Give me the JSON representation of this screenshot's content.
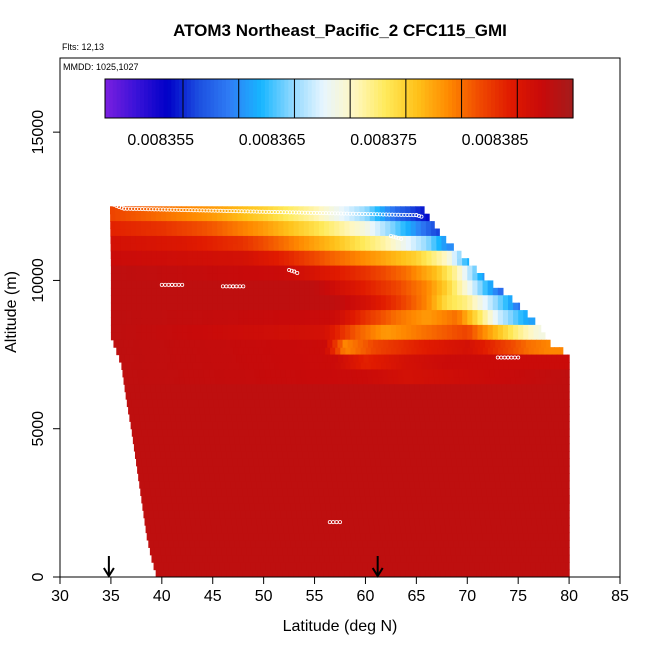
{
  "chart_data": {
    "type": "heatmap",
    "title": "ATOM3 Northeast_Pacific_2 CFC115_GMI",
    "annotations": {
      "flights": "Flts: 12,13",
      "dates": "MMDD: 1025,1027"
    },
    "xlabel": "Latitude (deg N)",
    "ylabel": "Altitude (m)",
    "xlim": [
      30,
      85
    ],
    "ylim": [
      0,
      17500
    ],
    "x_ticks": [
      "30",
      "35",
      "40",
      "45",
      "50",
      "55",
      "60",
      "65",
      "70",
      "75",
      "80",
      "85"
    ],
    "y_ticks": [
      "0",
      "5000",
      "10000",
      "15000"
    ],
    "colorbar": {
      "range": [
        0.00835,
        0.008392
      ],
      "tick_labels": [
        "0.008355",
        "0.008365",
        "0.008375",
        "0.008385"
      ],
      "tick_values": [
        0.008355,
        0.008365,
        0.008375,
        0.008385
      ],
      "colors": [
        "#7b1fe0",
        "#3a12d8",
        "#0000c8",
        "#1c4fe0",
        "#2f7df5",
        "#17b6ff",
        "#8fd8ff",
        "#e8f6ff",
        "#fff7c0",
        "#ffea5a",
        "#ffc21a",
        "#ff8a00",
        "#f04a00",
        "#e01a00",
        "#c80a0a",
        "#a41c1c"
      ]
    },
    "profile_bottom_edge": [
      [
        34.9,
        12600
      ],
      [
        35.0,
        10500
      ],
      [
        35.0,
        8100
      ],
      [
        36.0,
        7200
      ],
      [
        36.5,
        6000
      ],
      [
        37.0,
        5000
      ],
      [
        37.5,
        3800
      ],
      [
        38.0,
        2600
      ],
      [
        38.5,
        1400
      ],
      [
        39.0,
        600
      ],
      [
        39.5,
        0
      ]
    ],
    "profile_top_edge": [
      [
        35.5,
        12600
      ],
      [
        65.5,
        12500
      ],
      [
        66.5,
        12000
      ],
      [
        67.5,
        11500
      ],
      [
        69.0,
        11000
      ],
      [
        70.5,
        10500
      ],
      [
        72.0,
        10000
      ],
      [
        74.0,
        9500
      ],
      [
        75.5,
        9000
      ],
      [
        77.0,
        8500
      ],
      [
        78.0,
        7900
      ],
      [
        80.0,
        7500
      ],
      [
        80.0,
        0
      ]
    ],
    "layers": [
      {
        "alt": [
          12000,
          12500
        ],
        "values": [
          [
            35,
            0.008384
          ],
          [
            40,
            0.008382
          ],
          [
            45,
            0.00838
          ],
          [
            50,
            0.008377
          ],
          [
            55,
            0.008373
          ],
          [
            60,
            0.008367
          ],
          [
            63,
            0.00836
          ],
          [
            66,
            0.008356
          ]
        ]
      },
      {
        "alt": [
          11500,
          12000
        ],
        "values": [
          [
            35,
            0.008386
          ],
          [
            40,
            0.008385
          ],
          [
            45,
            0.008383
          ],
          [
            50,
            0.00838
          ],
          [
            55,
            0.008376
          ],
          [
            60,
            0.008371
          ],
          [
            64,
            0.008364
          ],
          [
            67,
            0.008358
          ]
        ]
      },
      {
        "alt": [
          11000,
          11500
        ],
        "values": [
          [
            35,
            0.008388
          ],
          [
            42,
            0.008387
          ],
          [
            48,
            0.008385
          ],
          [
            52,
            0.008382
          ],
          [
            57,
            0.008378
          ],
          [
            62,
            0.008373
          ],
          [
            66,
            0.008367
          ],
          [
            68,
            0.008362
          ]
        ]
      },
      {
        "alt": [
          10500,
          11000
        ],
        "values": [
          [
            35,
            0.008389
          ],
          [
            48,
            0.008388
          ],
          [
            52,
            0.008386
          ],
          [
            56,
            0.008383
          ],
          [
            61,
            0.00838
          ],
          [
            65,
            0.008377
          ],
          [
            68,
            0.008372
          ],
          [
            70,
            0.008364
          ],
          [
            72,
            0.008355
          ]
        ]
      },
      {
        "alt": [
          10000,
          10500
        ],
        "values": [
          [
            35,
            0.00839
          ],
          [
            52,
            0.008389
          ],
          [
            56,
            0.008387
          ],
          [
            60,
            0.008385
          ],
          [
            64,
            0.008382
          ],
          [
            67,
            0.008378
          ],
          [
            69,
            0.008373
          ],
          [
            71,
            0.008365
          ],
          [
            73,
            0.008356
          ]
        ]
      },
      {
        "alt": [
          9500,
          10000
        ],
        "values": [
          [
            35,
            0.00839
          ],
          [
            55,
            0.00839
          ],
          [
            59,
            0.008387
          ],
          [
            63,
            0.008384
          ],
          [
            66,
            0.008381
          ],
          [
            68,
            0.008377
          ],
          [
            70,
            0.008371
          ],
          [
            72,
            0.008364
          ],
          [
            74,
            0.008358
          ]
        ]
      },
      {
        "alt": [
          9000,
          9500
        ],
        "values": [
          [
            35,
            0.00839
          ],
          [
            57,
            0.00839
          ],
          [
            60,
            0.008388
          ],
          [
            63,
            0.008385
          ],
          [
            66,
            0.008381
          ],
          [
            68,
            0.008376
          ],
          [
            70,
            0.008374
          ],
          [
            72,
            0.008369
          ],
          [
            74,
            0.008364
          ],
          [
            75.5,
            0.008359
          ]
        ]
      },
      {
        "alt": [
          8500,
          9000
        ],
        "values": [
          [
            35,
            0.00839
          ],
          [
            57,
            0.008389
          ],
          [
            60,
            0.008385
          ],
          [
            63,
            0.008382
          ],
          [
            66,
            0.00838
          ],
          [
            69,
            0.008382
          ],
          [
            71,
            0.008376
          ],
          [
            73,
            0.008369
          ],
          [
            76,
            0.008363
          ]
        ]
      },
      {
        "alt": [
          8000,
          8500
        ],
        "values": [
          [
            35,
            0.00839
          ],
          [
            56,
            0.008388
          ],
          [
            59,
            0.008383
          ],
          [
            62,
            0.00838
          ],
          [
            66,
            0.008382
          ],
          [
            70,
            0.008384
          ],
          [
            73,
            0.008378
          ],
          [
            75,
            0.008374
          ],
          [
            77,
            0.008371
          ]
        ]
      },
      {
        "alt": [
          7500,
          8000
        ],
        "values": [
          [
            35,
            0.00839
          ],
          [
            56,
            0.008389
          ],
          [
            58,
            0.008381
          ],
          [
            61,
            0.008384
          ],
          [
            65,
            0.008386
          ],
          [
            70,
            0.008388
          ],
          [
            73,
            0.008385
          ],
          [
            76,
            0.008382
          ],
          [
            78,
            0.008381
          ]
        ]
      },
      {
        "alt": [
          7000,
          7500
        ],
        "values": [
          [
            35,
            0.00839
          ],
          [
            57,
            0.008389
          ],
          [
            60,
            0.008386
          ],
          [
            64,
            0.008388
          ],
          [
            68,
            0.008389
          ],
          [
            80,
            0.008389
          ]
        ]
      },
      {
        "alt": [
          6500,
          7000
        ],
        "values": [
          [
            35,
            0.00839
          ],
          [
            60,
            0.008389
          ],
          [
            64,
            0.008388
          ],
          [
            72,
            0.008389
          ],
          [
            80,
            0.00839
          ]
        ]
      },
      {
        "alt": [
          0,
          6500
        ],
        "values": [
          [
            35,
            0.00839
          ],
          [
            80,
            0.00839
          ]
        ]
      }
    ],
    "flight_tracks": [
      {
        "x": [
          35.3,
          35.8,
          36.3,
          65.0,
          65.5
        ],
        "y": [
          12550,
          12480,
          12420,
          12200,
          12150
        ]
      },
      {
        "x": [
          40.0,
          41.0,
          42.0
        ],
        "y": [
          9850,
          9850,
          9850
        ]
      },
      {
        "x": [
          46.0,
          47.0,
          48.0
        ],
        "y": [
          9800,
          9800,
          9800
        ]
      },
      {
        "x": [
          52.5,
          53.0,
          53.3
        ],
        "y": [
          10350,
          10300,
          10250
        ]
      },
      {
        "x": [
          62.5,
          63.0,
          63.5
        ],
        "y": [
          11500,
          11450,
          11400
        ]
      },
      {
        "x": [
          71.5,
          72.0,
          72.5
        ],
        "y": [
          10350,
          10320,
          10300
        ]
      },
      {
        "x": [
          56.5,
          57.5
        ],
        "y": [
          1850,
          1850
        ]
      },
      {
        "x": [
          73.0,
          74.0,
          75.0
        ],
        "y": [
          7400,
          7400,
          7400
        ]
      }
    ],
    "arrows_lat": [
      34.8,
      61.2
    ]
  }
}
